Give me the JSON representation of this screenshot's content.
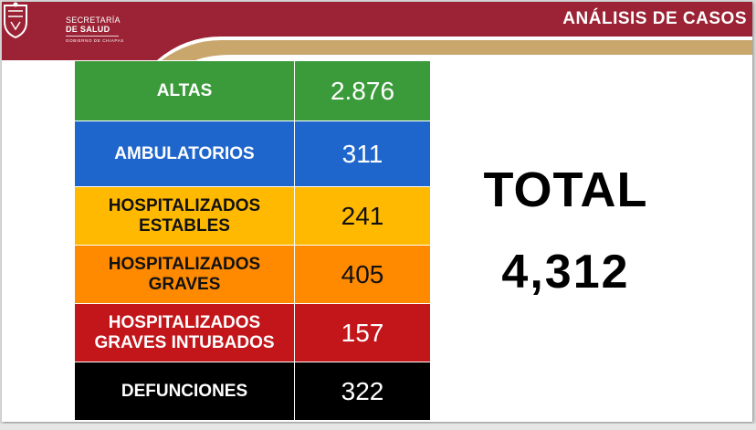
{
  "header": {
    "brand_line1": "SECRETARÍA",
    "brand_line2": "DE SALUD",
    "brand_line3": "GOBIERNO DE CHIAPAS",
    "title": "ANÁLISIS DE CASOS",
    "colors": {
      "maroon": "#9b2335",
      "gold": "#c9a66b"
    },
    "logo_icon": "state-coat-of-arms-icon"
  },
  "table": {
    "rows": [
      {
        "label": "ALTAS",
        "value": "2.876",
        "bg": "#3b9b3b",
        "text": "#ffffff"
      },
      {
        "label": "AMBULATORIOS",
        "value": "311",
        "bg": "#1f66cc",
        "text": "#ffffff"
      },
      {
        "label": "HOSPITALIZADOS\nESTABLES",
        "value": "241",
        "bg": "#ffb900",
        "text": "#111111"
      },
      {
        "label": "HOSPITALIZADOS\nGRAVES",
        "value": "405",
        "bg": "#ff8a00",
        "text": "#111111"
      },
      {
        "label": "HOSPITALIZADOS\nGRAVES INTUBADOS",
        "value": "157",
        "bg": "#c2161b",
        "text": "#ffffff"
      },
      {
        "label": "DEFUNCIONES",
        "value": "322",
        "bg": "#000000",
        "text": "#ffffff"
      }
    ]
  },
  "total": {
    "label": "TOTAL",
    "value": "4,312"
  }
}
